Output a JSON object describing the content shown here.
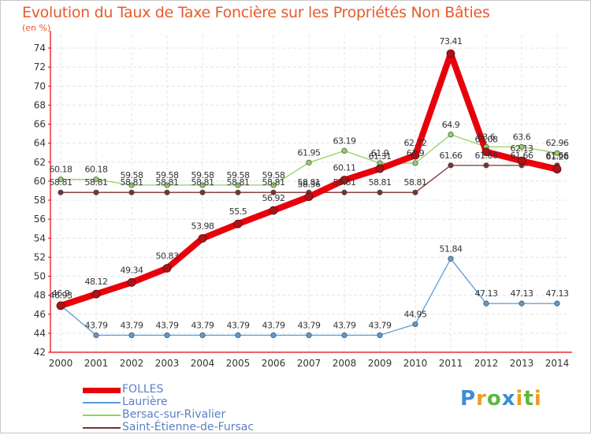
{
  "chart_data": {
    "type": "line",
    "title": "Evolution du Taux de Taxe Foncière sur les Propriétés Non Bâties",
    "subtitle": "(en %)",
    "categories": [
      "2000",
      "2001",
      "2002",
      "2003",
      "2004",
      "2005",
      "2006",
      "2007",
      "2008",
      "2009",
      "2010",
      "2011",
      "2012",
      "2013",
      "2014"
    ],
    "ylim": [
      42,
      74
    ],
    "yticks": [
      42,
      44,
      46,
      48,
      50,
      52,
      54,
      56,
      58,
      60,
      62,
      64,
      66,
      68,
      70,
      72,
      74
    ],
    "grid": true,
    "legend_position": "bottom-left",
    "series": [
      {
        "name": "FOLLES",
        "color": "#e8000b",
        "values": [
          46.9,
          48.12,
          49.34,
          50.83,
          53.98,
          55.5,
          56.92,
          58.36,
          60.11,
          61.31,
          62.72,
          73.41,
          63.08,
          62.13,
          61.26
        ],
        "labels": [
          "46.9",
          "48.12",
          "49.34",
          "50.83",
          "53.98",
          "55.5",
          "56.92",
          "58.36",
          "60.11",
          "61.31",
          "62.72",
          "73.41",
          "63.08",
          "62.13",
          "61.26"
        ]
      },
      {
        "name": "Laurière",
        "color": "#5b9bd5",
        "values": [
          46.93,
          43.79,
          43.79,
          43.79,
          43.79,
          43.79,
          43.79,
          43.79,
          43.79,
          43.79,
          44.95,
          51.84,
          47.13,
          47.13,
          47.13
        ],
        "labels": [
          "46.93",
          "43.79",
          "43.79",
          "43.79",
          "43.79",
          "43.79",
          "43.79",
          "43.79",
          "43.79",
          "43.79",
          "44.95",
          "51.84",
          "47.13",
          "47.13",
          "47.13"
        ]
      },
      {
        "name": "Bersac-sur-Rivalier",
        "color": "#8fd45c",
        "values": [
          60.18,
          60.18,
          59.58,
          59.58,
          59.58,
          59.58,
          59.58,
          61.95,
          63.19,
          61.9,
          61.9,
          64.9,
          63.6,
          63.6,
          62.96
        ],
        "labels": [
          "60.18",
          "60.18",
          "59.58",
          "59.58",
          "59.58",
          "59.58",
          "59.58",
          "61.95",
          "63.19",
          "61.9",
          "61.9",
          "64.9",
          "63.6",
          "63.6",
          "62.96"
        ]
      },
      {
        "name": "Saint-Étienne-de-Fursac",
        "color": "#7b3030",
        "values": [
          58.81,
          58.81,
          58.81,
          58.81,
          58.81,
          58.81,
          58.81,
          58.81,
          58.81,
          58.81,
          58.81,
          61.66,
          61.66,
          61.66,
          61.66
        ],
        "labels": [
          "58.81",
          "58.81",
          "58.81",
          "58.81",
          "58.81",
          "58.81",
          "58.81",
          "58.81",
          "58.81",
          "58.81",
          "58.81",
          "61.66",
          "61.66",
          "61.66",
          "61.66"
        ]
      }
    ]
  },
  "brand": {
    "letters": [
      "P",
      "r",
      "o",
      "x",
      "i",
      "t",
      "i"
    ],
    "colors": [
      "#3a8fd6",
      "#e8a020",
      "#5cb83c",
      "#3a8fd6",
      "#e8a020",
      "#5cb83c",
      "#e8a020"
    ]
  }
}
